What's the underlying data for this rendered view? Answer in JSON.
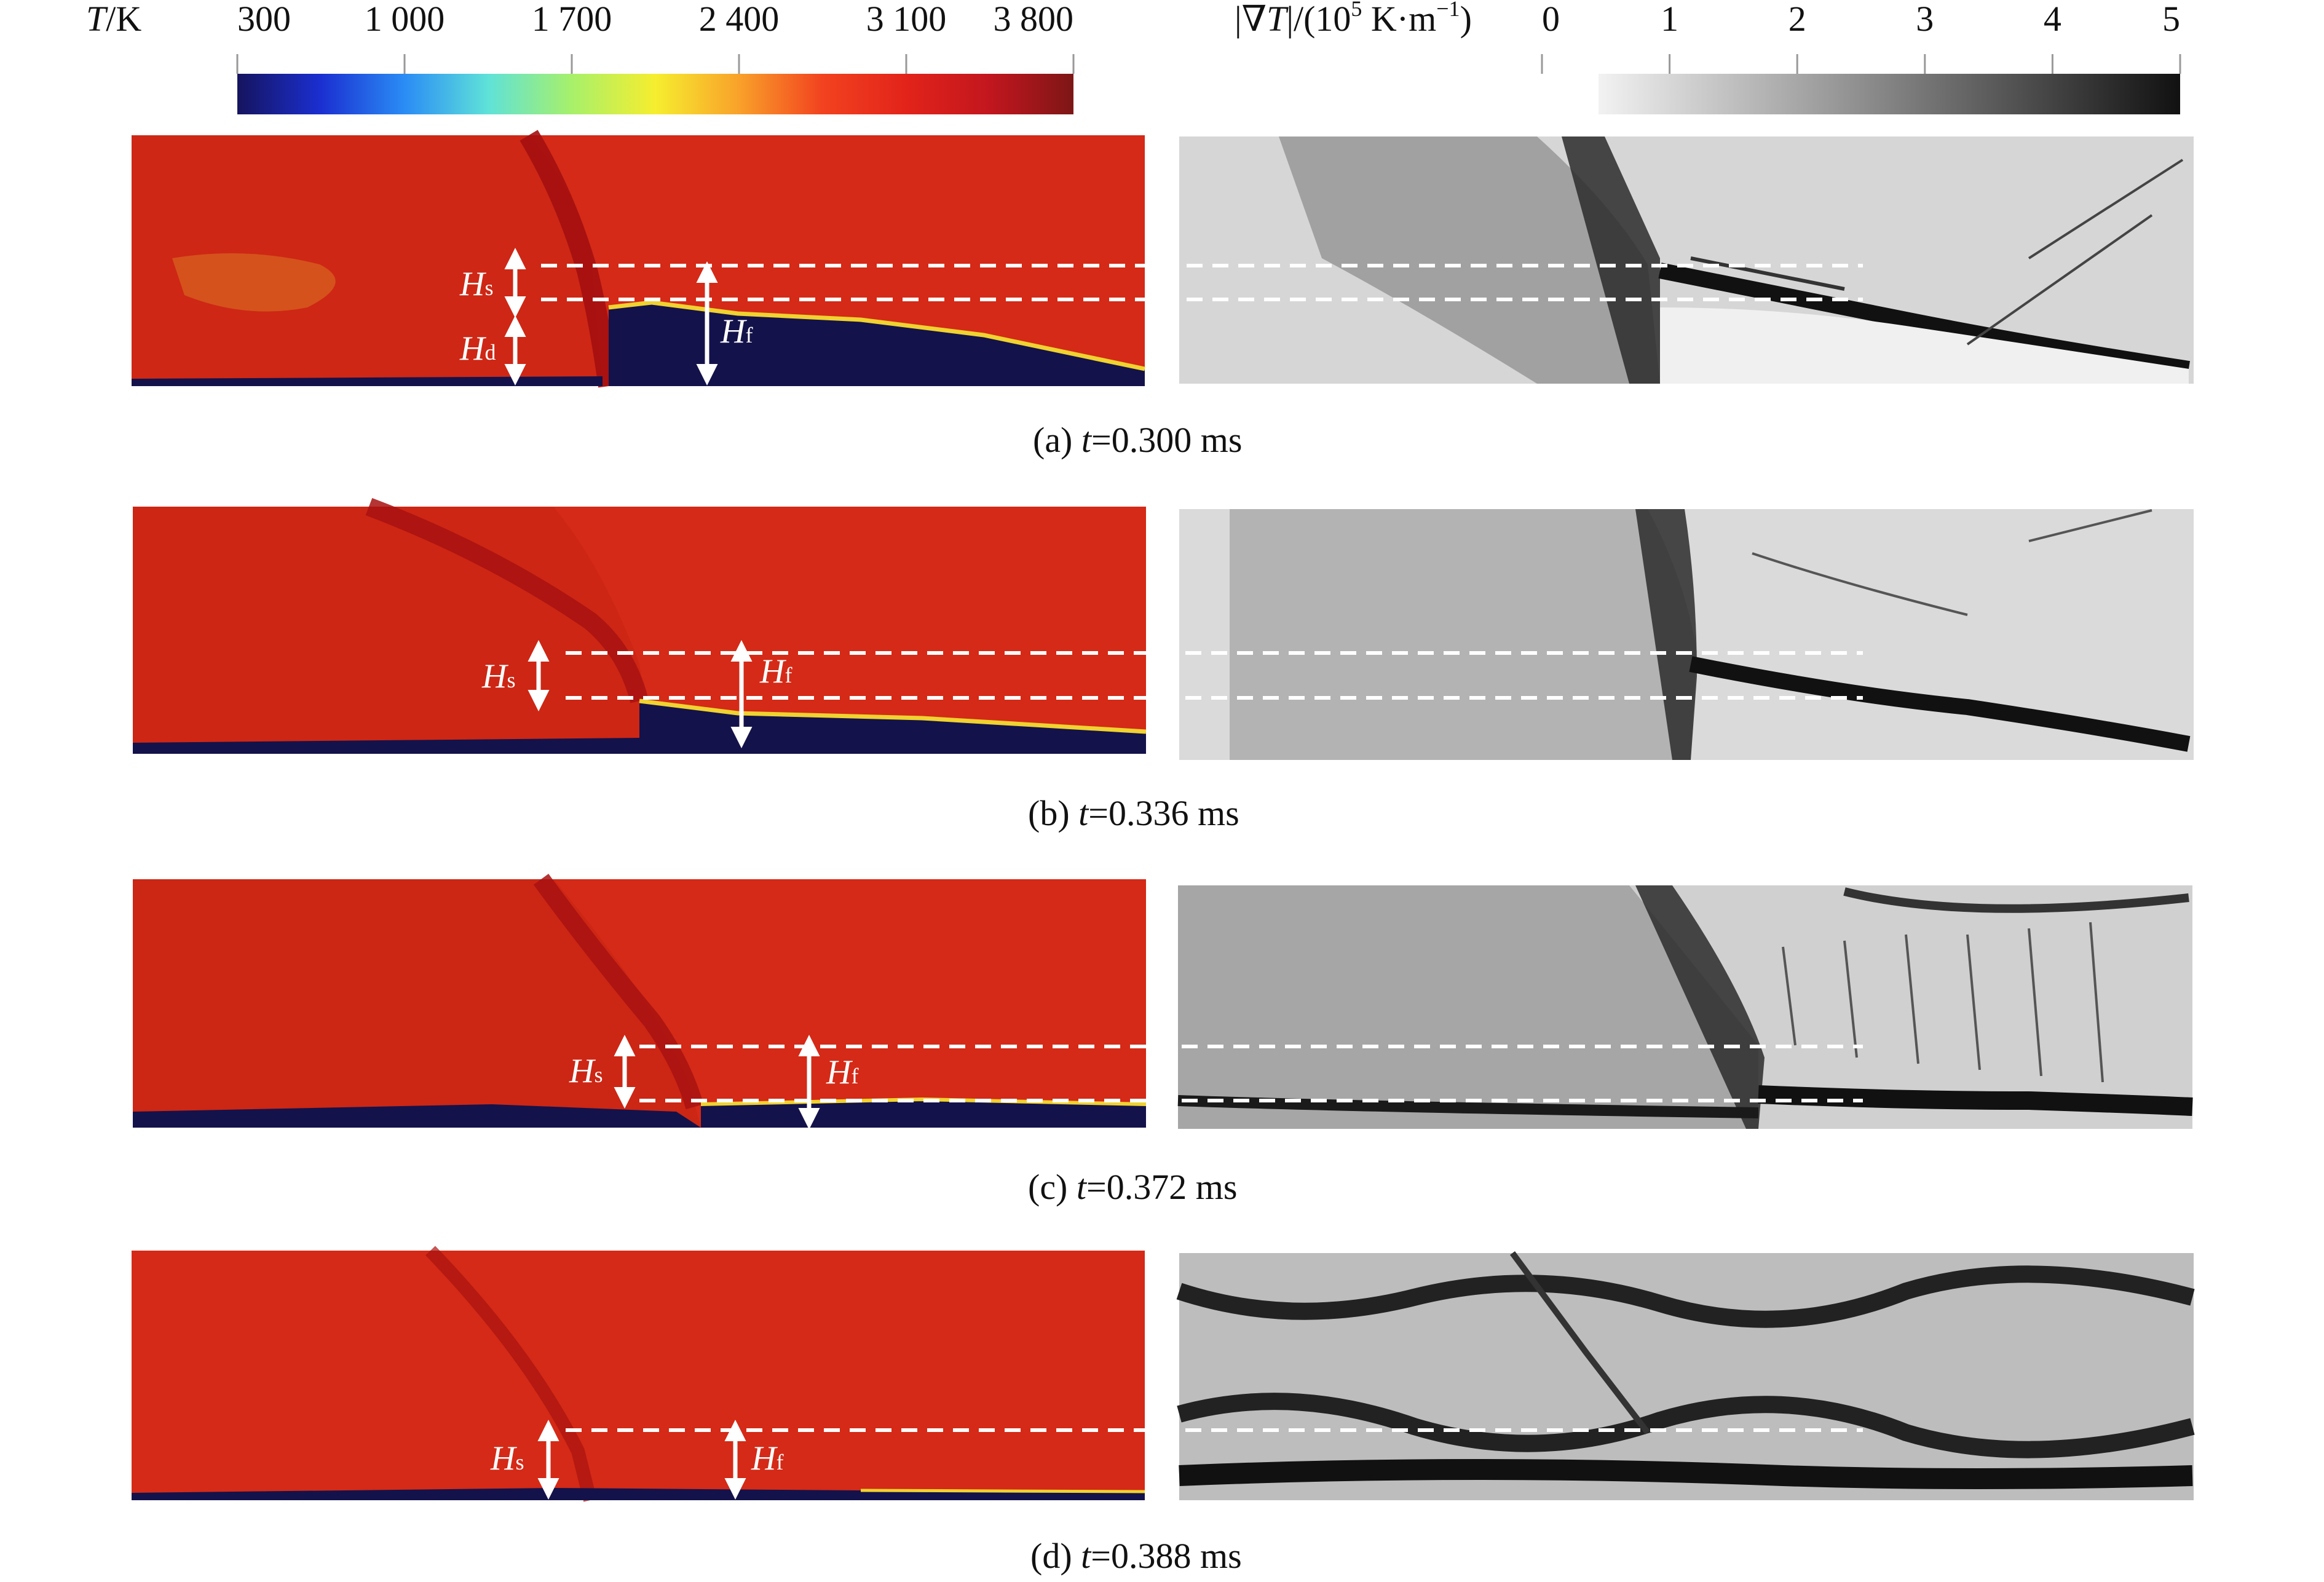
{
  "colorbar_T": {
    "label_var": "T",
    "label_unit": "/K",
    "ticks": [
      "300",
      "1 000",
      "1 700",
      "2 400",
      "3 100",
      "3 800"
    ],
    "colors": [
      "#15145e",
      "#1b2fd1",
      "#2a8cf5",
      "#5fe2d8",
      "#a7f06a",
      "#f6ee2f",
      "#f9a12a",
      "#f2421f",
      "#e2231a",
      "#c2161e",
      "#7d1616"
    ]
  },
  "colorbar_grad": {
    "label_prefix": "|∇",
    "label_var": "T",
    "label_mid": "|/(10",
    "label_exp1": "5",
    "label_unit": " K·m",
    "label_exp2": "−1",
    "label_end": ")",
    "ticks": [
      "0",
      "1",
      "2",
      "3",
      "4",
      "5"
    ],
    "colors": [
      "#f2f2f2",
      "#1a1a1a"
    ]
  },
  "temperature_colors": {
    "burned": "#d42a17",
    "unburned": "#14124a",
    "shock": "#b81612",
    "flame_edge": "#f0d230"
  },
  "panels": [
    {
      "caption_letter": "(a) ",
      "caption_var": "t",
      "caption_value": "=0.300 ms",
      "labels": {
        "hs": "H",
        "hs_sub": "s",
        "hd": "H",
        "hd_sub": "d",
        "hf": "H",
        "hf_sub": "f"
      }
    },
    {
      "caption_letter": "(b) ",
      "caption_var": "t",
      "caption_value": "=0.336 ms",
      "labels": {
        "hs": "H",
        "hs_sub": "s",
        "hf": "H",
        "hf_sub": "f"
      }
    },
    {
      "caption_letter": "(c) ",
      "caption_var": "t",
      "caption_value": "=0.372 ms",
      "labels": {
        "hs": "H",
        "hs_sub": "s",
        "hf": "H",
        "hf_sub": "f"
      }
    },
    {
      "caption_letter": "(d) ",
      "caption_var": "t",
      "caption_value": "=0.388 ms",
      "labels": {
        "hs": "H",
        "hs_sub": "s",
        "hf": "H",
        "hf_sub": "f"
      }
    }
  ]
}
